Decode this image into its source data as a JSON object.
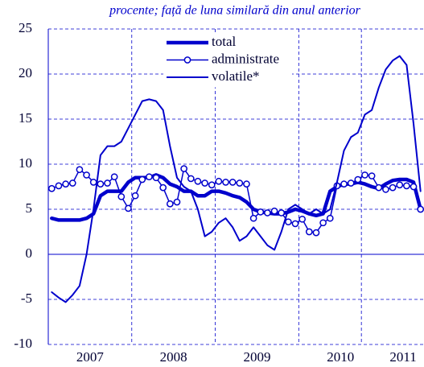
{
  "chart_data": {
    "type": "line",
    "subtitle": "procente; față de luna similară din anul anterior",
    "categories": [
      null,
      null,
      null,
      null,
      null,
      null,
      "2007",
      null,
      null,
      null,
      null,
      null,
      null,
      null,
      null,
      null,
      null,
      null,
      "2008",
      null,
      null,
      null,
      null,
      null,
      null,
      null,
      null,
      null,
      null,
      null,
      "2009",
      null,
      null,
      null,
      null,
      null,
      null,
      null,
      null,
      null,
      null,
      null,
      "2010",
      null,
      null,
      null,
      null,
      null,
      null,
      null,
      null,
      "2011",
      null,
      null
    ],
    "series": [
      {
        "name": "total",
        "color": "#0000cc",
        "width": 4.5,
        "marker": "none",
        "values": [
          4,
          3.8,
          3.8,
          3.8,
          3.8,
          4,
          4.5,
          6.5,
          7,
          7,
          7,
          8,
          8.5,
          8.5,
          8.5,
          8.8,
          8.5,
          7.8,
          7.5,
          7,
          7,
          6.5,
          6.5,
          7,
          7,
          6.8,
          6.5,
          6.3,
          5.8,
          5,
          4.7,
          4.6,
          4.5,
          4.5,
          4.7,
          5,
          4.8,
          4.5,
          4.3,
          4.5,
          7,
          7.5,
          7.8,
          7.8,
          8,
          7.8,
          7.5,
          7.3,
          7.8,
          8.2,
          8.3,
          8.3,
          8,
          5
        ]
      },
      {
        "name": "administrate",
        "color": "#0000cc",
        "width": 1.5,
        "marker": "circle",
        "values": [
          7.3,
          7.6,
          7.8,
          7.9,
          9.4,
          8.8,
          8.0,
          7.8,
          7.9,
          8.6,
          6.4,
          5.1,
          6.5,
          8.3,
          8.6,
          8.5,
          7.4,
          5.6,
          5.8,
          9.5,
          8.4,
          8.1,
          7.9,
          7.7,
          8.1,
          8.0,
          8.0,
          7.9,
          7.8,
          4.0,
          4.7,
          4.6,
          4.8,
          4.6,
          3.6,
          3.4,
          3.9,
          2.5,
          2.4,
          3.5,
          4.0,
          7.6,
          7.8,
          7.9,
          8.3,
          8.8,
          8.7,
          7.4,
          7.2,
          7.4,
          7.7,
          7.6,
          7.5,
          5.0
        ]
      },
      {
        "name": "volatile*",
        "color": "#0000cc",
        "width": 2,
        "marker": "none",
        "values": [
          -4.2,
          -4.8,
          -5.3,
          -4.5,
          -3.5,
          0,
          5,
          11,
          12,
          12,
          12.5,
          14,
          15.5,
          17,
          17.2,
          17,
          16,
          12,
          8.5,
          7.5,
          7,
          5,
          2,
          2.5,
          3.5,
          4,
          3,
          1.5,
          2,
          3,
          2,
          1,
          0.5,
          2.5,
          5,
          5.5,
          5,
          4.5,
          5,
          4.5,
          5,
          8,
          11.5,
          13,
          13.5,
          15.5,
          16,
          18.5,
          20.5,
          21.5,
          22,
          21,
          14.5,
          7
        ]
      }
    ],
    "ylim": [
      -10,
      25
    ],
    "yticks": [
      -10,
      -5,
      0,
      5,
      10,
      15,
      20,
      25
    ],
    "grid": true,
    "legend": "top"
  }
}
